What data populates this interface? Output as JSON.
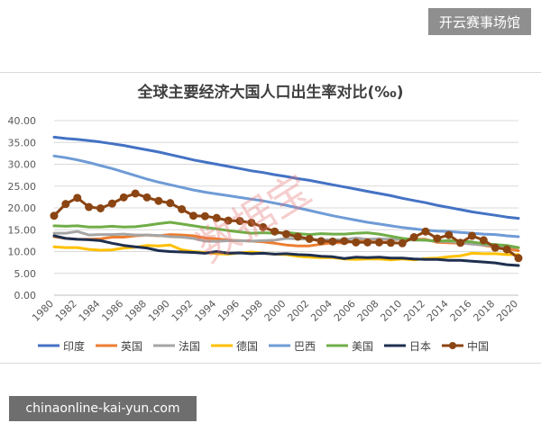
{
  "site_badge": "开云赛事场馆",
  "site_url": "chinaonline-kai-yun.com",
  "watermark": "数据宝",
  "chart_data": {
    "type": "line",
    "title": "全球主要经济大国人口出生率对比(‰)",
    "xlabel": "",
    "ylabel": "",
    "ylim": [
      0,
      40
    ],
    "yticks": [
      0,
      5,
      10,
      15,
      20,
      25,
      30,
      35,
      40
    ],
    "ytick_labels": [
      "0.00",
      "5.00",
      "10.00",
      "15.00",
      "20.00",
      "25.00",
      "30.00",
      "35.00",
      "40.00"
    ],
    "xlim": [
      1980,
      2020
    ],
    "xticks": [
      1980,
      1982,
      1984,
      1986,
      1988,
      1990,
      1992,
      1994,
      1996,
      1998,
      2000,
      2002,
      2004,
      2006,
      2008,
      2010,
      2012,
      2014,
      2016,
      2018,
      2020
    ],
    "grid": true,
    "legend_position": "bottom",
    "x": [
      1980,
      1981,
      1982,
      1983,
      1984,
      1985,
      1986,
      1987,
      1988,
      1989,
      1990,
      1991,
      1992,
      1993,
      1994,
      1995,
      1996,
      1997,
      1998,
      1999,
      2000,
      2001,
      2002,
      2003,
      2004,
      2005,
      2006,
      2007,
      2008,
      2009,
      2010,
      2011,
      2012,
      2013,
      2014,
      2015,
      2016,
      2017,
      2018,
      2019,
      2020
    ],
    "series": [
      {
        "name": "印度",
        "color": "#4472c4",
        "markers": false,
        "values": [
          36.2,
          35.9,
          35.7,
          35.4,
          35.1,
          34.7,
          34.3,
          33.8,
          33.3,
          32.8,
          32.2,
          31.6,
          31.0,
          30.5,
          30.0,
          29.5,
          29.0,
          28.5,
          28.1,
          27.6,
          27.2,
          26.7,
          26.3,
          25.8,
          25.3,
          24.8,
          24.3,
          23.8,
          23.3,
          22.8,
          22.2,
          21.7,
          21.2,
          20.6,
          20.1,
          19.6,
          19.1,
          18.7,
          18.3,
          17.9,
          17.6
        ]
      },
      {
        "name": "英国",
        "color": "#ed7d31",
        "markers": false,
        "values": [
          13.4,
          13.0,
          12.8,
          12.8,
          12.9,
          13.3,
          13.3,
          13.6,
          13.8,
          13.6,
          13.9,
          13.8,
          13.6,
          13.1,
          12.9,
          12.6,
          12.5,
          12.4,
          12.2,
          11.9,
          11.5,
          11.3,
          11.3,
          11.7,
          12.0,
          12.0,
          12.4,
          12.6,
          12.9,
          12.6,
          12.9,
          12.8,
          12.8,
          12.1,
          12.0,
          11.9,
          11.8,
          11.4,
          11.0,
          10.7,
          10.2
        ]
      },
      {
        "name": "法国",
        "color": "#a5a5a5",
        "markers": false,
        "values": [
          14.2,
          14.2,
          14.6,
          13.8,
          13.9,
          13.9,
          14.0,
          13.8,
          13.8,
          13.7,
          13.4,
          13.3,
          13.0,
          12.4,
          12.3,
          12.5,
          12.5,
          12.4,
          12.5,
          12.6,
          13.0,
          12.9,
          12.8,
          12.7,
          12.7,
          12.7,
          13.1,
          12.8,
          12.9,
          12.8,
          12.8,
          12.6,
          12.6,
          12.3,
          12.3,
          12.0,
          11.7,
          11.5,
          11.3,
          11.1,
          10.9
        ]
      },
      {
        "name": "德国",
        "color": "#ffc000",
        "markers": false,
        "values": [
          11.1,
          10.9,
          10.9,
          10.5,
          10.3,
          10.4,
          10.8,
          11.0,
          11.4,
          11.3,
          11.5,
          10.4,
          10.0,
          9.8,
          9.5,
          9.4,
          9.7,
          9.9,
          9.6,
          9.4,
          9.3,
          8.9,
          8.7,
          8.6,
          8.6,
          8.3,
          8.2,
          8.3,
          8.3,
          8.1,
          8.3,
          8.1,
          8.4,
          8.5,
          8.8,
          9.0,
          9.6,
          9.5,
          9.5,
          9.3,
          9.3
        ]
      },
      {
        "name": "巴西",
        "color": "#6f9bd6",
        "markers": false,
        "values": [
          31.9,
          31.5,
          31.0,
          30.4,
          29.7,
          29.0,
          28.2,
          27.4,
          26.6,
          25.9,
          25.3,
          24.7,
          24.1,
          23.6,
          23.2,
          22.8,
          22.4,
          22.0,
          21.6,
          21.1,
          20.6,
          20.0,
          19.4,
          18.8,
          18.2,
          17.7,
          17.2,
          16.7,
          16.3,
          15.9,
          15.5,
          15.2,
          14.9,
          14.7,
          14.6,
          14.4,
          14.2,
          14.0,
          13.9,
          13.6,
          13.4
        ]
      },
      {
        "name": "美国",
        "color": "#70ad47",
        "markers": false,
        "values": [
          15.9,
          15.8,
          15.9,
          15.6,
          15.6,
          15.8,
          15.6,
          15.7,
          16.0,
          16.4,
          16.7,
          16.3,
          15.9,
          15.5,
          15.2,
          14.8,
          14.5,
          14.2,
          14.3,
          14.2,
          14.4,
          14.1,
          13.9,
          14.1,
          14.0,
          14.0,
          14.2,
          14.3,
          14.0,
          13.5,
          13.0,
          12.7,
          12.6,
          12.4,
          12.5,
          12.4,
          12.2,
          11.8,
          11.6,
          11.4,
          10.9
        ]
      },
      {
        "name": "日本",
        "color": "#1f2f4f",
        "markers": false,
        "values": [
          13.6,
          13.0,
          12.8,
          12.7,
          12.5,
          11.9,
          11.4,
          11.1,
          10.8,
          10.2,
          10.0,
          9.9,
          9.8,
          9.6,
          10.0,
          9.6,
          9.7,
          9.5,
          9.6,
          9.4,
          9.5,
          9.3,
          9.2,
          8.9,
          8.8,
          8.4,
          8.7,
          8.6,
          8.7,
          8.5,
          8.5,
          8.3,
          8.2,
          8.2,
          8.0,
          8.0,
          7.8,
          7.6,
          7.4,
          7.0,
          6.8
        ]
      },
      {
        "name": "中国",
        "color": "#8b4513",
        "markers": true,
        "values": [
          18.2,
          20.9,
          22.3,
          20.2,
          19.9,
          21.0,
          22.4,
          23.3,
          22.4,
          21.6,
          21.1,
          19.7,
          18.2,
          18.1,
          17.7,
          17.1,
          17.0,
          16.6,
          15.6,
          14.6,
          14.0,
          13.4,
          12.9,
          12.4,
          12.3,
          12.4,
          12.1,
          12.1,
          12.1,
          12.0,
          11.9,
          13.3,
          14.6,
          13.0,
          13.8,
          12.0,
          13.6,
          12.6,
          10.9,
          10.5,
          8.5
        ]
      }
    ]
  }
}
